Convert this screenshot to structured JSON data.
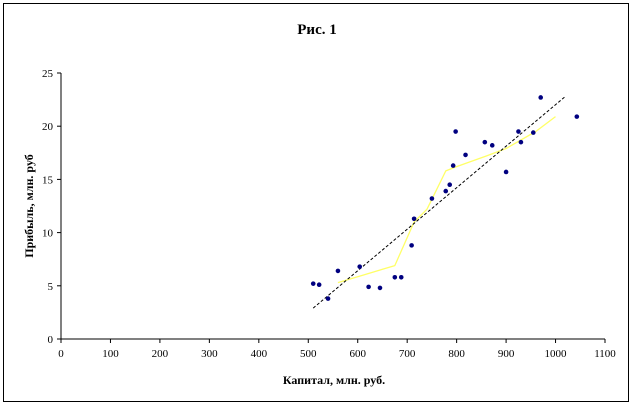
{
  "chart_data": {
    "type": "scatter",
    "title": "Рис. 1",
    "xlabel": "Капитал, млн. руб.",
    "ylabel": "Прибыль, млн. руб",
    "xlim": [
      0,
      1100
    ],
    "ylim": [
      0,
      25
    ],
    "x_ticks": [
      0,
      100,
      200,
      300,
      400,
      500,
      600,
      700,
      800,
      900,
      1000,
      1100
    ],
    "y_ticks": [
      0,
      5,
      10,
      15,
      20,
      25
    ],
    "grid": false,
    "legend": "none",
    "series": [
      {
        "kind": "points",
        "color": "#000080",
        "points": [
          [
            510,
            5.2
          ],
          [
            522,
            5.1
          ],
          [
            540,
            3.8
          ],
          [
            560,
            6.4
          ],
          [
            604,
            6.8
          ],
          [
            622,
            4.9
          ],
          [
            645,
            4.8
          ],
          [
            675,
            5.8
          ],
          [
            688,
            5.8
          ],
          [
            709,
            8.8
          ],
          [
            714,
            11.3
          ],
          [
            750,
            13.2
          ],
          [
            778,
            13.9
          ],
          [
            786,
            14.5
          ],
          [
            793,
            16.3
          ],
          [
            798,
            19.5
          ],
          [
            818,
            17.3
          ],
          [
            857,
            18.5
          ],
          [
            872,
            18.2
          ],
          [
            900,
            15.7
          ],
          [
            925,
            19.5
          ],
          [
            930,
            18.5
          ],
          [
            955,
            19.4
          ],
          [
            970,
            22.7
          ],
          [
            1043,
            20.9
          ]
        ]
      },
      {
        "kind": "smoothed-line",
        "color": "#ffff66",
        "points": [
          [
            560,
            5.3
          ],
          [
            610,
            6.0
          ],
          [
            675,
            6.9
          ],
          [
            714,
            11.0
          ],
          [
            740,
            12.2
          ],
          [
            778,
            15.8
          ],
          [
            800,
            16.2
          ],
          [
            860,
            17.2
          ],
          [
            900,
            17.9
          ],
          [
            960,
            19.5
          ],
          [
            1000,
            20.9
          ]
        ]
      },
      {
        "kind": "trend-line",
        "color": "#000000",
        "points": [
          [
            510,
            2.9
          ],
          [
            1020,
            22.8
          ]
        ]
      }
    ]
  }
}
